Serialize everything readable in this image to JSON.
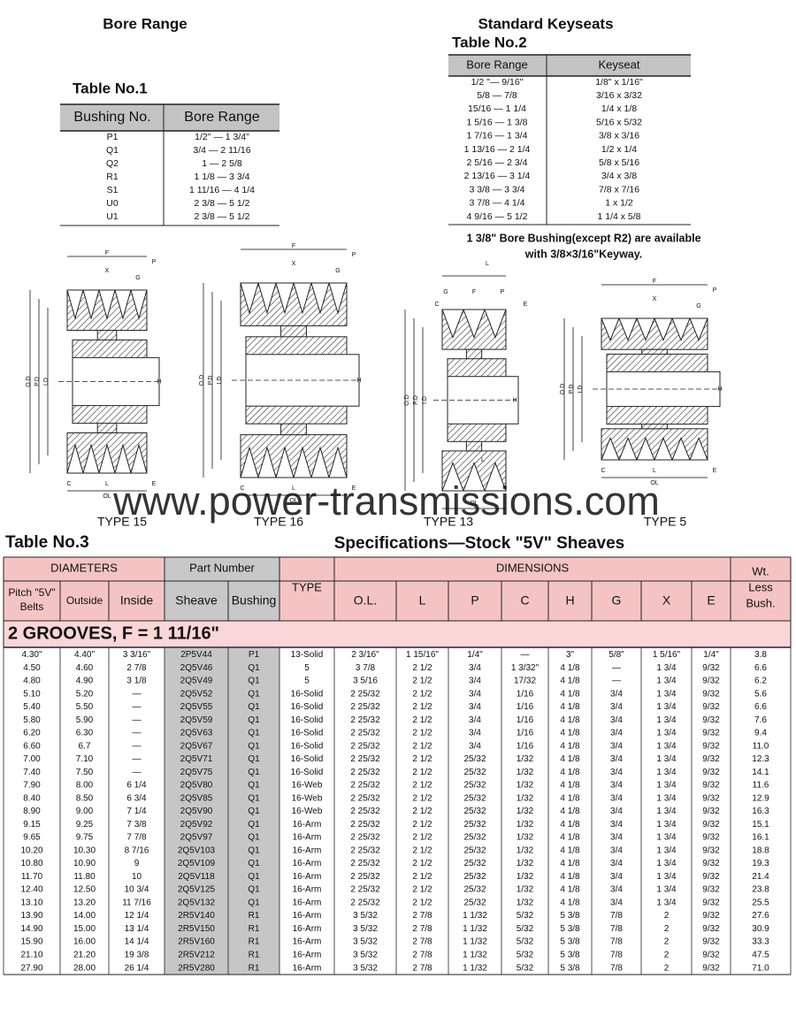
{
  "table1": {
    "heading": "Bore Range",
    "title": "Table No.1",
    "columns": [
      "Bushing No.",
      "Bore Range"
    ],
    "rows": [
      [
        "P1",
        "1/2\" — 1 3/4\""
      ],
      [
        "Q1",
        "3/4 — 2 11/16"
      ],
      [
        "Q2",
        "1 — 2 5/8"
      ],
      [
        "R1",
        "1 1/8 — 3 3/4"
      ],
      [
        "S1",
        "1 11/16 — 4 1/4"
      ],
      [
        "U0",
        "2 3/8 — 5 1/2"
      ],
      [
        "U1",
        "2 3/8 — 5 1/2"
      ]
    ]
  },
  "table2": {
    "heading": "Standard Keyseats",
    "title": "Table No.2",
    "columns": [
      "Bore Range",
      "Keyseat"
    ],
    "rows": [
      [
        "1/2 \"— 9/16\"",
        "1/8\" x 1/16\""
      ],
      [
        "5/8 — 7/8",
        "3/16 x 3/32"
      ],
      [
        "15/16 — 1 1/4",
        "1/4 x 1/8"
      ],
      [
        "1 5/16 — 1 3/8",
        "5/16 x 5/32"
      ],
      [
        "1 7/16 — 1 3/4",
        "3/8 x 3/16"
      ],
      [
        "1 13/16 — 2 1/4",
        "1/2 x 1/4"
      ],
      [
        "2 5/16 — 2 3/4",
        "5/8 x 5/16"
      ],
      [
        "2 13/16 — 3 1/4",
        "3/4 x 3/8"
      ],
      [
        "3 3/8 — 3 3/4",
        "7/8 x 7/16"
      ],
      [
        "3 7/8 — 4 1/4",
        "1 x 1/2"
      ],
      [
        "4 9/16 — 5 1/2",
        "1 1/4 x 5/8"
      ]
    ],
    "note": [
      "1 3/8\" Bore Bushing(except R2) are available",
      "with 3/8×3/16\"Keyway."
    ]
  },
  "diagrams": [
    {
      "type": "TYPE 15",
      "labels": [
        "F",
        "X",
        "G",
        "P",
        "O.D",
        "P.D",
        "I.D",
        "H",
        "C",
        "L",
        "E",
        "OL"
      ]
    },
    {
      "type": "TYPE 16",
      "labels": [
        "F",
        "X",
        "G",
        "P",
        "O.D",
        "P.D",
        "I.D",
        "H",
        "C",
        "L",
        "E",
        "OL"
      ]
    },
    {
      "type": "TYPE 13",
      "labels": [
        "L",
        "G",
        "F",
        "P",
        "C",
        "E",
        "O.D",
        "P.D",
        "I.D",
        "H",
        "L",
        "OL"
      ]
    },
    {
      "type": "TYPE 5",
      "labels": [
        "F",
        "X",
        "G",
        "P",
        "O.D",
        "P.D",
        "I.D",
        "H",
        "C",
        "L",
        "E",
        "OL"
      ]
    }
  ],
  "watermark": "www.power-transmissions.com",
  "table3": {
    "title": "Table No.3",
    "heading": "Specifications—Stock \"5V\" Sheaves",
    "groups": {
      "diameters": "DIAMETERS",
      "part": "Part Number",
      "type": "TYPE",
      "dimensions": "DIMENSIONS",
      "weight": [
        "Wt.",
        "Less",
        "Bush."
      ]
    },
    "columns": [
      [
        "Pitch \"5V\"",
        "Belts"
      ],
      "Outside",
      "Inside",
      "Sheave",
      "Bushing",
      "O.L.",
      "L",
      "P",
      "C",
      "H",
      "G",
      "X",
      "E"
    ],
    "section": "2 GROOVES, F =  1 11/16\"",
    "rows": [
      [
        "4.30\"",
        "4.40\"",
        "3 3/16\"",
        "2P5V44",
        "P1",
        "13-Solid",
        "2 3/16\"",
        "1 15/16\"",
        "1/4\"",
        "—",
        "3\"",
        "5/8\"",
        "1 5/16\"",
        "1/4\"",
        "3.8"
      ],
      [
        "4.50",
        "4.60",
        "2 7/8",
        "2Q5V46",
        "Q1",
        "5",
        "3 7/8",
        "2 1/2",
        "3/4",
        "1 3/32\"",
        "4 1/8",
        "—",
        "1 3/4",
        "9/32",
        "6.6"
      ],
      [
        "4.80",
        "4.90",
        "3 1/8",
        "2Q5V49",
        "Q1",
        "5",
        "3 5/16",
        "2 1/2",
        "3/4",
        "17/32",
        "4 1/8",
        "—",
        "1 3/4",
        "9/32",
        "6.2"
      ],
      [
        "5.10",
        "5.20",
        "—",
        "2Q5V52",
        "Q1",
        "16-Solid",
        "2 25/32",
        "2 1/2",
        "3/4",
        "1/16",
        "4 1/8",
        "3/4",
        "1 3/4",
        "9/32",
        "5.6"
      ],
      [
        "5.40",
        "5.50",
        "—",
        "2Q5V55",
        "Q1",
        "16-Solid",
        "2 25/32",
        "2 1/2",
        "3/4",
        "1/16",
        "4 1/8",
        "3/4",
        "1 3/4",
        "9/32",
        "6.6"
      ],
      [
        "5.80",
        "5.90",
        "—",
        "2Q5V59",
        "Q1",
        "16-Solid",
        "2 25/32",
        "2 1/2",
        "3/4",
        "1/16",
        "4 1/8",
        "3/4",
        "1 3/4",
        "9/32",
        "7.6"
      ],
      [
        "6.20",
        "6.30",
        "—",
        "2Q5V63",
        "Q1",
        "16-Solid",
        "2 25/32",
        "2 1/2",
        "3/4",
        "1/16",
        "4 1/8",
        "3/4",
        "1 3/4",
        "9/32",
        "9.4"
      ],
      [
        "6.60",
        "6.7",
        "—",
        "2Q5V67",
        "Q1",
        "16-Solid",
        "2 25/32",
        "2 1/2",
        "3/4",
        "1/16",
        "4 1/8",
        "3/4",
        "1 3/4",
        "9/32",
        "11.0"
      ],
      [
        "7.00",
        "7.10",
        "—",
        "2Q5V71",
        "Q1",
        "16-Solid",
        "2 25/32",
        "2 1/2",
        "25/32",
        "1/32",
        "4 1/8",
        "3/4",
        "1 3/4",
        "9/32",
        "12.3"
      ],
      [
        "7.40",
        "7.50",
        "—",
        "2Q5V75",
        "Q1",
        "16-Solid",
        "2 25/32",
        "2 1/2",
        "25/32",
        "1/32",
        "4 1/8",
        "3/4",
        "1 3/4",
        "9/32",
        "14.1"
      ],
      [
        "7.90",
        "8.00",
        "6 1/4",
        "2Q5V80",
        "Q1",
        "16-Web",
        "2 25/32",
        "2 1/2",
        "25/32",
        "1/32",
        "4 1/8",
        "3/4",
        "1 3/4",
        "9/32",
        "11.6"
      ],
      [
        "8.40",
        "8.50",
        "6 3/4",
        "2Q5V85",
        "Q1",
        "16-Web",
        "2 25/32",
        "2 1/2",
        "25/32",
        "1/32",
        "4 1/8",
        "3/4",
        "1 3/4",
        "9/32",
        "12.9"
      ],
      [
        "8.90",
        "9.00",
        "7 1/4",
        "2Q5V90",
        "Q1",
        "16-Web",
        "2 25/32",
        "2 1/2",
        "25/32",
        "1/32",
        "4 1/8",
        "3/4",
        "1 3/4",
        "9/32",
        "16.3"
      ],
      [
        "9.15",
        "9.25",
        "7 3/8",
        "2Q5V92",
        "Q1",
        "16-Arm",
        "2 25/32",
        "2 1/2",
        "25/32",
        "1/32",
        "4 1/8",
        "3/4",
        "1 3/4",
        "9/32",
        "15.1"
      ],
      [
        "9.65",
        "9.75",
        "7 7/8",
        "2Q5V97",
        "Q1",
        "16-Arm",
        "2 25/32",
        "2 1/2",
        "25/32",
        "1/32",
        "4 1/8",
        "3/4",
        "1 3/4",
        "9/32",
        "16.1"
      ],
      [
        "10.20",
        "10.30",
        "8 7/16",
        "2Q5V103",
        "Q1",
        "16-Arm",
        "2 25/32",
        "2 1/2",
        "25/32",
        "1/32",
        "4 1/8",
        "3/4",
        "1 3/4",
        "9/32",
        "18.8"
      ],
      [
        "10.80",
        "10.90",
        "9",
        "2Q5V109",
        "Q1",
        "16-Arm",
        "2 25/32",
        "2 1/2",
        "25/32",
        "1/32",
        "4 1/8",
        "3/4",
        "1 3/4",
        "9/32",
        "19.3"
      ],
      [
        "11.70",
        "11.80",
        "10",
        "2Q5V118",
        "Q1",
        "16-Arm",
        "2 25/32",
        "2 1/2",
        "25/32",
        "1/32",
        "4 1/8",
        "3/4",
        "1 3/4",
        "9/32",
        "21.4"
      ],
      [
        "12.40",
        "12.50",
        "10 3/4",
        "2Q5V125",
        "Q1",
        "16-Arm",
        "2 25/32",
        "2 1/2",
        "25/32",
        "1/32",
        "4 1/8",
        "3/4",
        "1 3/4",
        "9/32",
        "23.8"
      ],
      [
        "13.10",
        "13.20",
        "11 7/16",
        "2Q5V132",
        "Q1",
        "16-Arm",
        "2 25/32",
        "2 1/2",
        "25/32",
        "1/32",
        "4 1/8",
        "3/4",
        "1 3/4",
        "9/32",
        "25.5"
      ],
      [
        "13.90",
        "14.00",
        "12 1/4",
        "2R5V140",
        "R1",
        "16-Arm",
        "3 5/32",
        "2 7/8",
        "1 1/32",
        "5/32",
        "5 3/8",
        "7/8",
        "2",
        "9/32",
        "27.6"
      ],
      [
        "14.90",
        "15.00",
        "13 1/4",
        "2R5V150",
        "R1",
        "16-Arm",
        "3 5/32",
        "2 7/8",
        "1 1/32",
        "5/32",
        "5 3/8",
        "7/8",
        "2",
        "9/32",
        "30.9"
      ],
      [
        "15.90",
        "16.00",
        "14 1/4",
        "2R5V160",
        "R1",
        "16-Arm",
        "3 5/32",
        "2 7/8",
        "1 1/32",
        "5/32",
        "5 3/8",
        "7/8",
        "2",
        "9/32",
        "33.3"
      ],
      [
        "21.10",
        "21.20",
        "19 3/8",
        "2R5V212",
        "R1",
        "16-Arm",
        "3 5/32",
        "2 7/8",
        "1 1/32",
        "5/32",
        "5 3/8",
        "7/8",
        "2",
        "9/32",
        "47.5"
      ],
      [
        "27.90",
        "28.00",
        "26 1/4",
        "2R5V280",
        "R1",
        "16-Arm",
        "3 5/32",
        "2 7/8",
        "1 1/32",
        "5/32",
        "5 3/8",
        "7/8",
        "2",
        "9/32",
        "71.0"
      ]
    ]
  }
}
